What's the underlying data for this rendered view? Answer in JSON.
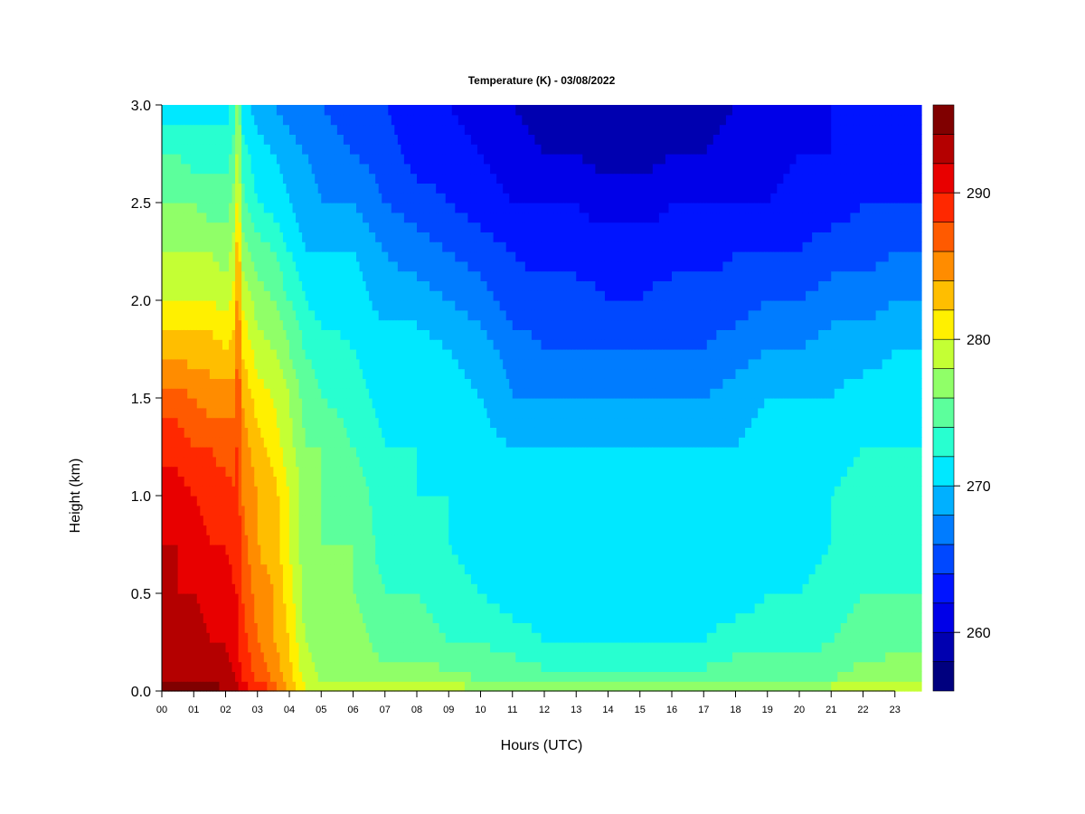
{
  "chart_data": {
    "type": "heatmap",
    "title": "Temperature (K) - 03/08/2022",
    "xlabel": "Hours (UTC)",
    "ylabel": "Height (km)",
    "xlim": [
      0,
      23.83
    ],
    "ylim": [
      0,
      3.0
    ],
    "x_tick_labels": [
      "00",
      "01",
      "02",
      "03",
      "04",
      "05",
      "06",
      "07",
      "08",
      "09",
      "10",
      "11",
      "12",
      "13",
      "14",
      "15",
      "16",
      "17",
      "18",
      "19",
      "20",
      "21",
      "22",
      "23"
    ],
    "y_tick_labels": [
      "0.0",
      "0.5",
      "1.0",
      "1.5",
      "2.0",
      "2.5",
      "3.0"
    ],
    "y_ticks": [
      0,
      0.5,
      1.0,
      1.5,
      2.0,
      2.5,
      3.0
    ],
    "colorbar": {
      "range": [
        256,
        296
      ],
      "step": 2,
      "tick_values": [
        260,
        270,
        280,
        290
      ],
      "tick_labels": [
        "260",
        "270",
        "280",
        "290"
      ],
      "colors": [
        "#00007f",
        "#0000b0",
        "#0000e8",
        "#0014ff",
        "#0048ff",
        "#007cff",
        "#00b0ff",
        "#00e8ff",
        "#28ffd0",
        "#5cff9c",
        "#90ff68",
        "#c4ff34",
        "#fff000",
        "#ffbe00",
        "#ff8c00",
        "#ff5a00",
        "#ff2800",
        "#e80000",
        "#b40000",
        "#800000"
      ]
    },
    "heights_km": [
      0,
      0.05,
      0.25,
      0.5,
      0.75,
      1.0,
      1.25,
      1.5,
      1.75,
      2.0,
      2.25,
      2.5,
      2.75,
      3.0
    ],
    "times_h": [
      0,
      0.5,
      1,
      1.5,
      2,
      2.3,
      2.4,
      2.5,
      3,
      3.5,
      4,
      4.5,
      5,
      6,
      7,
      8,
      9,
      10,
      11,
      12,
      13,
      14,
      15,
      16,
      17,
      18,
      19,
      20,
      21,
      22,
      23,
      23.83
    ],
    "temperature_K": [
      [
        295,
        294,
        293,
        292,
        292,
        291,
        289,
        287,
        283,
        280,
        278,
        276,
        274,
        271
      ],
      [
        295,
        294,
        293,
        292,
        292,
        291,
        289,
        287,
        283,
        280,
        278,
        276,
        274,
        271
      ],
      [
        295,
        294,
        293,
        292,
        291,
        290,
        288,
        286,
        283,
        280,
        278,
        276,
        273,
        271
      ],
      [
        295,
        294,
        292,
        291,
        290,
        289,
        288,
        285,
        283,
        280,
        278,
        275,
        273,
        271
      ],
      [
        294,
        293,
        292,
        291,
        290,
        289,
        287,
        285,
        282,
        279,
        277,
        275,
        273,
        271
      ],
      [
        293,
        292,
        291,
        290,
        289,
        288,
        287,
        285,
        283,
        281,
        279,
        277,
        275,
        273
      ],
      [
        292,
        291,
        290,
        290,
        290,
        289,
        289,
        289,
        288,
        287,
        286,
        283,
        281,
        280
      ],
      [
        291,
        290,
        289,
        288,
        287,
        286,
        285,
        284,
        282,
        280,
        277,
        275,
        273,
        271
      ],
      [
        290,
        288,
        286,
        285,
        284,
        284,
        283,
        281,
        279,
        277,
        275,
        272,
        271,
        269
      ],
      [
        288,
        286,
        284,
        284,
        283,
        283,
        281,
        280,
        278,
        276,
        274,
        271,
        270,
        268
      ],
      [
        284,
        283,
        282,
        281,
        280,
        280,
        279,
        278,
        276,
        274,
        272,
        270,
        269,
        267
      ],
      [
        281,
        279,
        278,
        277,
        277,
        277,
        276,
        275,
        274,
        272,
        270,
        269,
        268,
        266
      ],
      [
        280,
        278,
        277,
        277,
        276,
        276,
        276,
        274,
        273,
        271,
        270,
        268,
        267,
        266
      ],
      [
        280,
        278,
        277,
        276,
        276,
        275,
        274,
        273,
        272,
        271,
        270,
        268,
        266,
        265
      ],
      [
        280,
        277,
        275,
        274,
        273,
        273,
        272,
        271,
        271,
        269,
        268,
        266,
        265,
        264
      ],
      [
        280,
        277,
        275,
        274,
        273,
        272,
        272,
        271,
        271,
        269,
        267,
        265,
        263,
        263
      ],
      [
        280,
        277,
        274,
        273,
        272,
        272,
        271,
        271,
        270,
        268,
        266,
        264,
        263,
        262
      ],
      [
        279,
        276,
        274,
        272,
        271,
        271,
        271,
        270,
        269,
        267,
        265,
        263,
        262,
        261
      ],
      [
        279,
        276,
        273,
        271,
        271,
        270,
        270,
        268,
        267,
        265,
        264,
        262,
        261,
        260
      ],
      [
        279,
        275,
        272,
        271,
        270,
        270,
        270,
        268,
        266,
        265,
        263,
        262,
        260,
        259
      ],
      [
        279,
        275,
        272,
        271,
        270,
        270,
        270,
        268,
        266,
        265,
        263,
        262,
        260,
        259
      ],
      [
        279,
        275,
        272,
        271,
        270,
        270,
        270,
        268,
        266,
        264,
        263,
        261,
        259,
        258
      ],
      [
        279,
        275,
        272,
        271,
        270,
        270,
        270,
        268,
        266,
        264,
        263,
        261,
        259,
        258
      ],
      [
        279,
        275,
        272,
        271,
        270,
        270,
        270,
        268,
        266,
        265,
        263,
        262,
        260,
        259
      ],
      [
        279,
        275,
        272,
        271,
        270,
        270,
        270,
        268,
        266,
        265,
        263,
        262,
        260,
        259
      ],
      [
        279,
        276,
        273,
        271,
        271,
        270,
        270,
        269,
        267,
        265,
        264,
        262,
        261,
        260
      ],
      [
        279,
        276,
        273,
        272,
        271,
        271,
        271,
        270,
        268,
        266,
        264,
        262,
        261,
        261
      ],
      [
        279,
        276,
        273,
        272,
        271,
        271,
        271,
        270,
        268,
        266,
        264,
        263,
        262,
        261
      ],
      [
        280,
        276,
        274,
        273,
        272,
        272,
        271,
        270,
        269,
        267,
        265,
        263,
        262,
        262
      ],
      [
        280,
        277,
        275,
        274,
        273,
        273,
        272,
        271,
        269,
        267,
        265,
        264,
        263,
        262
      ],
      [
        281,
        278,
        275,
        274,
        273,
        273,
        272,
        271,
        270,
        268,
        266,
        264,
        263,
        263
      ],
      [
        281,
        278,
        275,
        274,
        273,
        273,
        272,
        271,
        270,
        268,
        266,
        264,
        263,
        263
      ]
    ]
  }
}
